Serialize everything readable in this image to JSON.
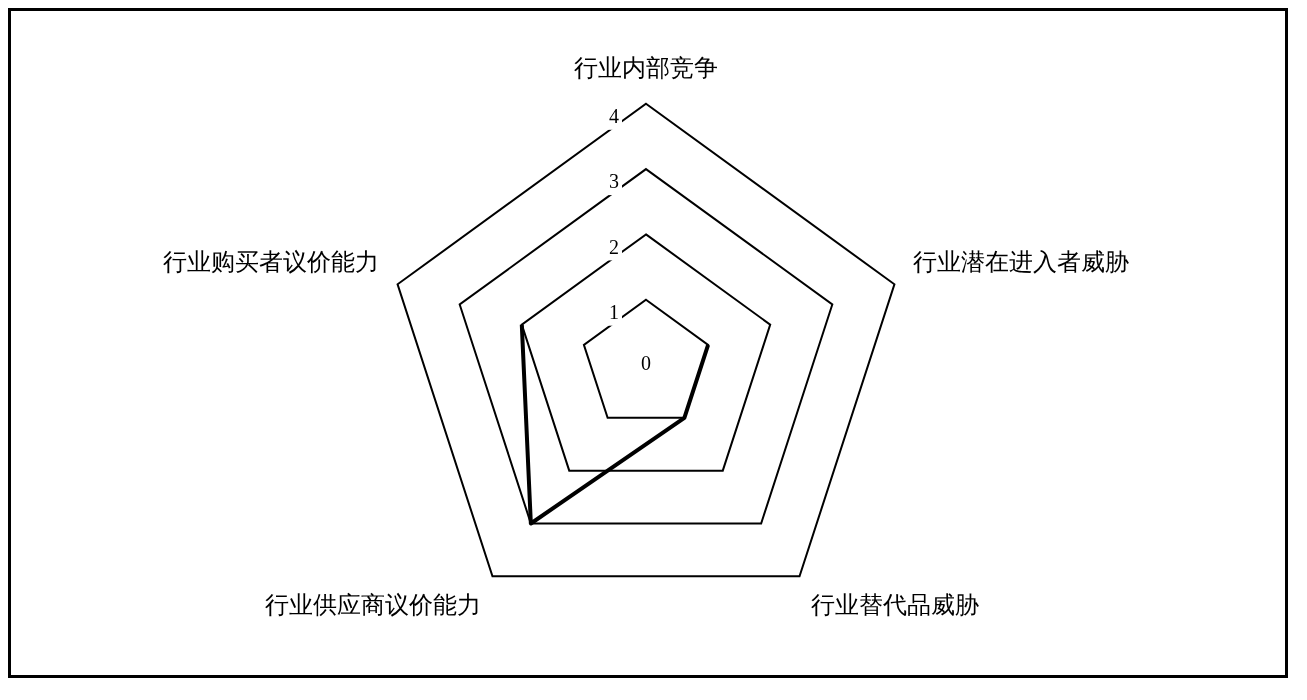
{
  "chart_data": {
    "type": "radar",
    "categories": [
      "行业内部竞争",
      "行业潜在进入者威胁",
      "行业替代品威胁",
      "行业供应商议价能力",
      "行业购买者议价能力"
    ],
    "series": [
      {
        "color": "#000000",
        "values": [
          null,
          1,
          1,
          3,
          2
        ]
      }
    ],
    "ylim": [
      0,
      4
    ],
    "yticks": [
      0,
      1,
      2,
      3,
      4
    ],
    "grid": true,
    "legend": false,
    "marker": "none"
  }
}
